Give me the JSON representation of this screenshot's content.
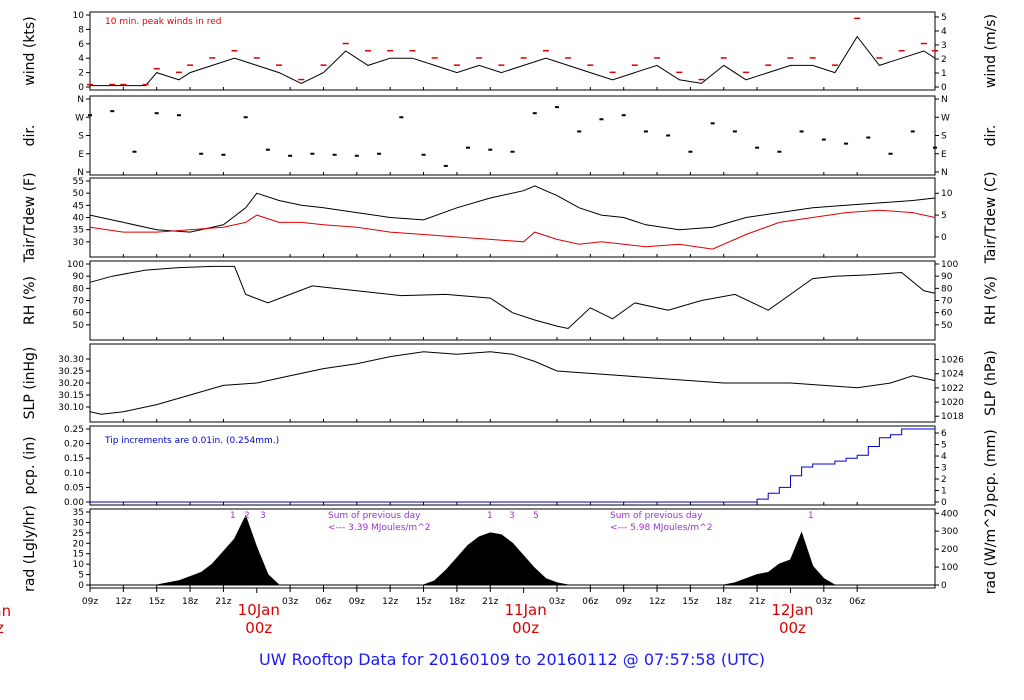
{
  "footer": {
    "title": "UW Rooftop Data for 20160109  to  20160112 @ 07:57:58  (UTC)"
  },
  "colors": {
    "red": "#dd0000",
    "blue": "#0000cc",
    "purple": "#9933cc",
    "title_blue": "#1a1aff"
  },
  "chart_data": [
    {
      "id": "wind",
      "type": "line",
      "ylabel": "wind (kts)",
      "ylabel_right": "wind (m/s)",
      "annotation": "10 min. peak winds in red",
      "ylim": [
        0,
        10
      ],
      "ticks": [
        "0",
        "2",
        "4",
        "6",
        "8",
        "10"
      ],
      "right_ylim": [
        0,
        5.14
      ],
      "right_ticks": [
        "0",
        "1",
        "2",
        "3",
        "4",
        "5"
      ],
      "x": [
        0,
        2,
        3,
        5,
        6,
        8,
        9,
        11,
        13,
        15,
        17,
        19,
        21,
        23,
        25,
        27,
        29,
        31,
        33,
        35,
        37,
        39,
        41,
        43,
        45,
        47,
        49,
        51,
        53,
        55,
        57,
        59,
        61,
        63,
        65,
        67,
        69,
        71,
        73,
        75,
        76
      ],
      "series": [
        {
          "name": "wind",
          "values": [
            0.2,
            0.2,
            0.2,
            0.2,
            2,
            1,
            2,
            3,
            4,
            3,
            2,
            0.5,
            2,
            5,
            3,
            4,
            4,
            3,
            2,
            3,
            2,
            3,
            4,
            3,
            2,
            1,
            2,
            3,
            1,
            0.5,
            3,
            1,
            2,
            3,
            3,
            2,
            7,
            3,
            4,
            5,
            4
          ]
        },
        {
          "name": "10 min. peak winds",
          "values": [
            0.3,
            0.3,
            0.3,
            0.3,
            2.5,
            2,
            3,
            4,
            5,
            4,
            3,
            1,
            3,
            6,
            5,
            5,
            5,
            4,
            3,
            4,
            3,
            4,
            5,
            4,
            3,
            2,
            3,
            4,
            2,
            1,
            4,
            2,
            3,
            4,
            4,
            3,
            9.5,
            4,
            5,
            6,
            5
          ]
        }
      ]
    },
    {
      "id": "dir",
      "type": "scatter",
      "ylabel": "dir.",
      "ylabel_right": "dir.",
      "ticks": [
        "N",
        "E",
        "S",
        "W",
        "N"
      ],
      "x": [
        0,
        2,
        4,
        6,
        8,
        10,
        12,
        14,
        16,
        18,
        20,
        22,
        24,
        26,
        28,
        30,
        32,
        34,
        36,
        38,
        40,
        42,
        44,
        46,
        48,
        50,
        52,
        54,
        56,
        58,
        60,
        62,
        64,
        66,
        68,
        70,
        72,
        74,
        76
      ],
      "values": [
        280,
        300,
        100,
        290,
        280,
        90,
        85,
        270,
        110,
        80,
        90,
        85,
        80,
        90,
        270,
        85,
        30,
        120,
        110,
        100,
        290,
        320,
        200,
        260,
        280,
        200,
        180,
        100,
        240,
        200,
        120,
        100,
        200,
        160,
        140,
        170,
        90,
        200,
        120
      ]
    },
    {
      "id": "temp",
      "type": "line",
      "ylabel": "Tair/Tdew (F)",
      "ylabel_right": "Tair/Tdew (C)",
      "ylim": [
        25,
        55
      ],
      "ticks": [
        "30",
        "35",
        "40",
        "45",
        "50",
        "55"
      ],
      "right_ylim": [
        -3.9,
        12.8
      ],
      "right_ticks": [
        "0",
        "5",
        "10"
      ],
      "x": [
        0,
        3,
        6,
        9,
        12,
        14,
        15,
        17,
        19,
        21,
        24,
        27,
        30,
        33,
        36,
        39,
        40,
        42,
        44,
        46,
        48,
        50,
        53,
        56,
        59,
        62,
        65,
        68,
        71,
        74,
        76
      ],
      "series": [
        {
          "name": "Tair",
          "values": [
            41,
            38,
            35,
            34,
            37,
            44,
            50,
            47,
            45,
            44,
            42,
            40,
            39,
            44,
            48,
            51,
            53,
            49,
            44,
            41,
            40,
            37,
            35,
            36,
            40,
            42,
            44,
            45,
            46,
            47,
            48
          ]
        },
        {
          "name": "Tdew",
          "values": [
            36,
            34,
            34,
            35,
            36,
            38,
            41,
            38,
            38,
            37,
            36,
            34,
            33,
            32,
            31,
            30,
            34,
            31,
            29,
            30,
            29,
            28,
            29,
            27,
            33,
            38,
            40,
            42,
            43,
            42,
            40
          ]
        }
      ]
    },
    {
      "id": "rh",
      "type": "line",
      "ylabel": "RH (%)",
      "ylabel_right": "RH (%)",
      "ylim": [
        40,
        100
      ],
      "ticks": [
        "50",
        "60",
        "70",
        "80",
        "90",
        "100"
      ],
      "right_ticks": [
        "50",
        "60",
        "70",
        "80",
        "90",
        "100"
      ],
      "x": [
        0,
        2,
        5,
        8,
        11,
        13,
        14,
        16,
        18,
        20,
        24,
        28,
        32,
        36,
        38,
        40,
        42,
        43,
        45,
        47,
        49,
        52,
        55,
        58,
        61,
        63,
        65,
        67,
        70,
        73,
        75,
        76
      ],
      "values": [
        85,
        90,
        95,
        97,
        98,
        98,
        75,
        68,
        75,
        82,
        78,
        74,
        75,
        72,
        60,
        54,
        49,
        47,
        64,
        55,
        68,
        62,
        70,
        75,
        62,
        75,
        88,
        90,
        91,
        93,
        78,
        76
      ]
    },
    {
      "id": "slp",
      "type": "line",
      "ylabel": "SLP (inHg)",
      "ylabel_right": "SLP (hPa)",
      "ylim": [
        30.05,
        30.35
      ],
      "ticks": [
        "30.10",
        "30.15",
        "30.20",
        "30.25",
        "30.30"
      ],
      "right_ticks": [
        "1018",
        "1020",
        "1022",
        "1024",
        "1026"
      ],
      "x": [
        0,
        1,
        3,
        6,
        9,
        12,
        15,
        18,
        21,
        24,
        27,
        30,
        33,
        36,
        38,
        40,
        42,
        45,
        48,
        51,
        54,
        57,
        60,
        63,
        66,
        69,
        72,
        74,
        76
      ],
      "values": [
        30.08,
        30.07,
        30.08,
        30.11,
        30.15,
        30.19,
        30.2,
        30.23,
        30.26,
        30.28,
        30.31,
        30.33,
        30.32,
        30.33,
        30.32,
        30.29,
        30.25,
        30.24,
        30.23,
        30.22,
        30.21,
        30.2,
        30.2,
        30.2,
        30.19,
        30.18,
        30.2,
        30.23,
        30.21
      ]
    },
    {
      "id": "pcp",
      "type": "line",
      "ylabel": "pcp. (in)",
      "ylabel_right": "pcp. (mm)",
      "annotation": "Tip increments are 0.01in. (0.254mm.)",
      "ylim": [
        0,
        0.25
      ],
      "ticks": [
        "0.00",
        "0.05",
        "0.10",
        "0.15",
        "0.20",
        "0.25"
      ],
      "right_ylim": [
        0,
        6.35
      ],
      "right_ticks": [
        "0",
        "1",
        "2",
        "3",
        "4",
        "5",
        "6"
      ],
      "x": [
        0,
        58,
        60,
        61,
        62,
        63,
        64,
        65,
        67,
        68,
        69,
        70,
        71,
        72,
        73,
        76
      ],
      "values": [
        0,
        0,
        0.01,
        0.03,
        0.05,
        0.09,
        0.12,
        0.13,
        0.14,
        0.15,
        0.16,
        0.19,
        0.22,
        0.23,
        0.25,
        0.25
      ]
    },
    {
      "id": "rad",
      "type": "area",
      "ylabel": "rad (Lgly/hr)",
      "ylabel_right": "rad (W/m^2)",
      "ylim": [
        0,
        35
      ],
      "ticks": [
        "0",
        "5",
        "10",
        "15",
        "20",
        "25",
        "30",
        "35"
      ],
      "right_ylim": [
        0,
        407
      ],
      "right_ticks": [
        "0",
        "100",
        "200",
        "300",
        "400"
      ],
      "x": [
        0,
        6,
        8,
        10,
        11,
        12,
        13,
        14,
        15,
        16,
        17,
        30,
        31,
        32,
        33,
        34,
        35,
        36,
        37,
        38,
        39,
        40,
        41,
        42,
        43,
        57,
        58,
        59,
        60,
        61,
        62,
        63,
        64,
        65,
        66,
        67,
        76
      ],
      "values": [
        0,
        0,
        2,
        6,
        10,
        16,
        22,
        33,
        18,
        5,
        0,
        0,
        2,
        7,
        13,
        19,
        23,
        25,
        24,
        20,
        14,
        8,
        3,
        1,
        0,
        0,
        1,
        3,
        5,
        6,
        10,
        12,
        25,
        9,
        3,
        0,
        0
      ],
      "annotations": [
        "Sum of previous day",
        "<--- 3.39 MJoules/m^2",
        "Sum of previous day",
        "<--- 5.98 MJoules/m^2"
      ],
      "markers_day1": [
        "1",
        "2",
        "3"
      ],
      "markers_day2": [
        "1",
        "3",
        "5"
      ],
      "markers_day3": [
        "1"
      ]
    }
  ],
  "x_axis": {
    "ticks": [
      "09z",
      "12z",
      "15z",
      "18z",
      "21z",
      "03z",
      "06z",
      "09z",
      "12z",
      "15z",
      "18z",
      "21z",
      "03z",
      "06z",
      "09z",
      "12z",
      "15z",
      "18z",
      "21z",
      "03z",
      "06z"
    ],
    "tick_hours": [
      0,
      3,
      6,
      9,
      12,
      18,
      21,
      24,
      27,
      30,
      33,
      36,
      42,
      45,
      48,
      51,
      54,
      57,
      60,
      66,
      69
    ],
    "date_labels": [
      {
        "day": "10Jan",
        "hour": "00z",
        "at": 15
      },
      {
        "day": "11Jan",
        "hour": "00z",
        "at": 39
      },
      {
        "day": "12Jan",
        "hour": "00z",
        "at": 63
      }
    ],
    "left_edge": {
      "day": "Jan",
      "hour": "z"
    }
  }
}
